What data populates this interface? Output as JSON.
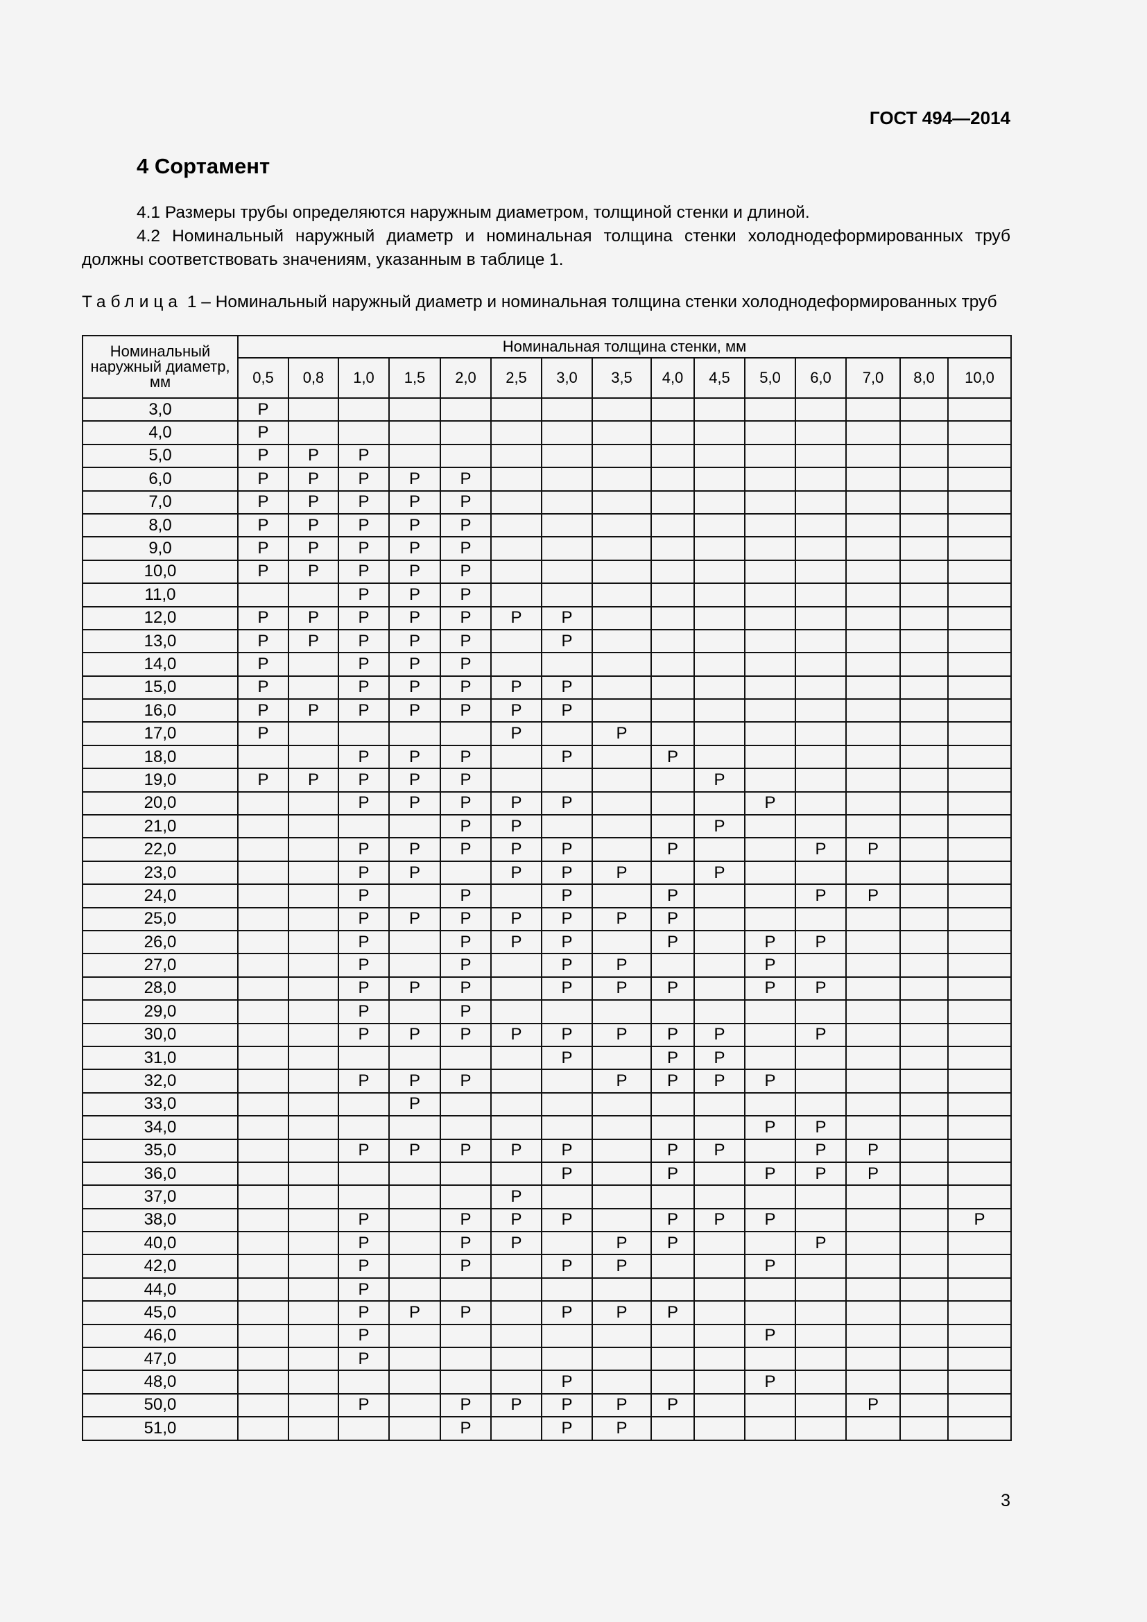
{
  "header": {
    "doc_code": "ГОСТ 494—2014"
  },
  "section": {
    "title": "4 Сортамент"
  },
  "paragraphs": [
    "4.1 Размеры трубы определяются наружным диаметром, толщиной стенки и длиной.",
    "4.2 Номинальный наружный диаметр и номинальная толщина стенки холоднодеформированных труб должны соответствовать значениям, указанным в таблице 1."
  ],
  "table": {
    "caption_label": "Таблица",
    "caption_text": "1 – Номинальный наружный диаметр и номинальная толщина стенки холоднодеформированных труб",
    "diameter_header": "Номинальный наружный диаметр, мм",
    "thickness_header": "Номинальная толщина стенки, мм",
    "thickness_columns": [
      "0,5",
      "0,8",
      "1,0",
      "1,5",
      "2,0",
      "2,5",
      "3,0",
      "3,5",
      "4,0",
      "4,5",
      "5,0",
      "6,0",
      "7,0",
      "8,0",
      "10,0"
    ],
    "mark": "Р",
    "rows": [
      {
        "d": "3,0",
        "p": [
          0
        ]
      },
      {
        "d": "4,0",
        "p": [
          0
        ]
      },
      {
        "d": "5,0",
        "p": [
          0,
          1,
          2
        ]
      },
      {
        "d": "6,0",
        "p": [
          0,
          1,
          2,
          3,
          4
        ]
      },
      {
        "d": "7,0",
        "p": [
          0,
          1,
          2,
          3,
          4
        ]
      },
      {
        "d": "8,0",
        "p": [
          0,
          1,
          2,
          3,
          4
        ]
      },
      {
        "d": "9,0",
        "p": [
          0,
          1,
          2,
          3,
          4
        ]
      },
      {
        "d": "10,0",
        "p": [
          0,
          1,
          2,
          3,
          4
        ]
      },
      {
        "d": "11,0",
        "p": [
          2,
          3,
          4
        ]
      },
      {
        "d": "12,0",
        "p": [
          0,
          1,
          2,
          3,
          4,
          5,
          6
        ]
      },
      {
        "d": "13,0",
        "p": [
          0,
          1,
          2,
          3,
          4,
          6
        ]
      },
      {
        "d": "14,0",
        "p": [
          0,
          2,
          3,
          4
        ]
      },
      {
        "d": "15,0",
        "p": [
          0,
          2,
          3,
          4,
          5,
          6
        ]
      },
      {
        "d": "16,0",
        "p": [
          0,
          1,
          2,
          3,
          4,
          5,
          6
        ]
      },
      {
        "d": "17,0",
        "p": [
          0,
          5,
          7
        ]
      },
      {
        "d": "18,0",
        "p": [
          2,
          3,
          4,
          6,
          8
        ]
      },
      {
        "d": "19,0",
        "p": [
          0,
          1,
          2,
          3,
          4,
          9
        ]
      },
      {
        "d": "20,0",
        "p": [
          2,
          3,
          4,
          5,
          6,
          10
        ]
      },
      {
        "d": "21,0",
        "p": [
          4,
          5,
          9
        ]
      },
      {
        "d": "22,0",
        "p": [
          2,
          3,
          4,
          5,
          6,
          8,
          11,
          12
        ]
      },
      {
        "d": "23,0",
        "p": [
          2,
          3,
          5,
          6,
          7,
          9
        ]
      },
      {
        "d": "24,0",
        "p": [
          2,
          4,
          6,
          8,
          11,
          12
        ]
      },
      {
        "d": "25,0",
        "p": [
          2,
          3,
          4,
          5,
          6,
          7,
          8
        ]
      },
      {
        "d": "26,0",
        "p": [
          2,
          4,
          5,
          6,
          8,
          10,
          11
        ]
      },
      {
        "d": "27,0",
        "p": [
          2,
          4,
          6,
          7,
          10
        ]
      },
      {
        "d": "28,0",
        "p": [
          2,
          3,
          4,
          6,
          7,
          8,
          10,
          11
        ]
      },
      {
        "d": "29,0",
        "p": [
          2,
          4
        ]
      },
      {
        "d": "30,0",
        "p": [
          2,
          3,
          4,
          5,
          6,
          7,
          8,
          9,
          11
        ]
      },
      {
        "d": "31,0",
        "p": [
          6,
          8,
          9
        ]
      },
      {
        "d": "32,0",
        "p": [
          2,
          3,
          4,
          7,
          8,
          9,
          10
        ]
      },
      {
        "d": "33,0",
        "p": [
          3
        ]
      },
      {
        "d": "34,0",
        "p": [
          10,
          11
        ]
      },
      {
        "d": "35,0",
        "p": [
          2,
          3,
          4,
          5,
          6,
          8,
          9,
          11,
          12
        ]
      },
      {
        "d": "36,0",
        "p": [
          6,
          8,
          10,
          11,
          12
        ]
      },
      {
        "d": "37,0",
        "p": [
          5
        ]
      },
      {
        "d": "38,0",
        "p": [
          2,
          4,
          5,
          6,
          8,
          9,
          10,
          14
        ]
      },
      {
        "d": "40,0",
        "p": [
          2,
          4,
          5,
          7,
          8,
          11
        ]
      },
      {
        "d": "42,0",
        "p": [
          2,
          4,
          6,
          7,
          10
        ]
      },
      {
        "d": "44,0",
        "p": [
          2
        ]
      },
      {
        "d": "45,0",
        "p": [
          2,
          3,
          4,
          6,
          7,
          8
        ]
      },
      {
        "d": "46,0",
        "p": [
          2,
          10
        ]
      },
      {
        "d": "47,0",
        "p": [
          2
        ]
      },
      {
        "d": "48,0",
        "p": [
          6,
          10
        ]
      },
      {
        "d": "50,0",
        "p": [
          2,
          4,
          5,
          6,
          7,
          8,
          12
        ]
      },
      {
        "d": "51,0",
        "p": [
          4,
          6,
          7
        ]
      }
    ]
  },
  "footer": {
    "page_number": "3"
  }
}
